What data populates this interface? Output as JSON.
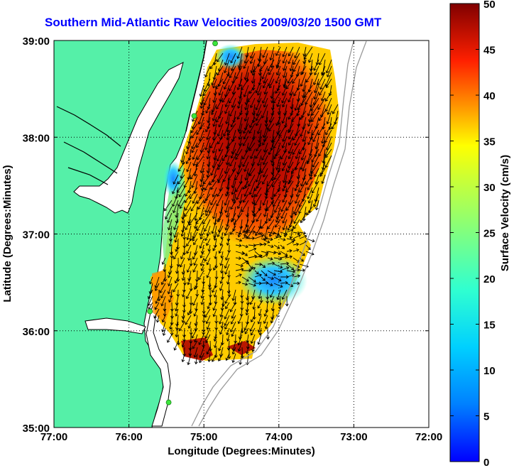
{
  "title": "Southern Mid-Atlantic Raw Velocities 2009/03/20 1500 GMT",
  "map": {
    "xlabel": "Longitude (Degrees:Minutes)",
    "ylabel": "Latitude (Degrees:Minutes)",
    "x_ticks": [
      "77:00",
      "76:00",
      "75:00",
      "74:00",
      "73:00",
      "72:00"
    ],
    "y_ticks": [
      "39:00",
      "38:00",
      "37:00",
      "36:00",
      "35:00"
    ],
    "xlim": [
      -77,
      -72
    ],
    "ylim": [
      35,
      39
    ],
    "grid": "dotted",
    "colors": {
      "land": "#55f0a8",
      "coast": "#000000",
      "bathymetry": "#9a9a9a",
      "stations": "#3ce63c"
    }
  },
  "colorbar": {
    "label": "Surface Velocity (cm/s)",
    "ticks": [
      "0",
      "5",
      "10",
      "15",
      "20",
      "25",
      "30",
      "35",
      "40",
      "45",
      "50"
    ],
    "range": [
      0,
      50
    ],
    "colormap": "jet"
  },
  "stations": [
    {
      "lon": -74.85,
      "lat": 38.97
    },
    {
      "lon": -75.13,
      "lat": 38.22
    },
    {
      "lon": -75.72,
      "lat": 36.2
    },
    {
      "lon": -75.47,
      "lat": 35.26
    }
  ]
}
